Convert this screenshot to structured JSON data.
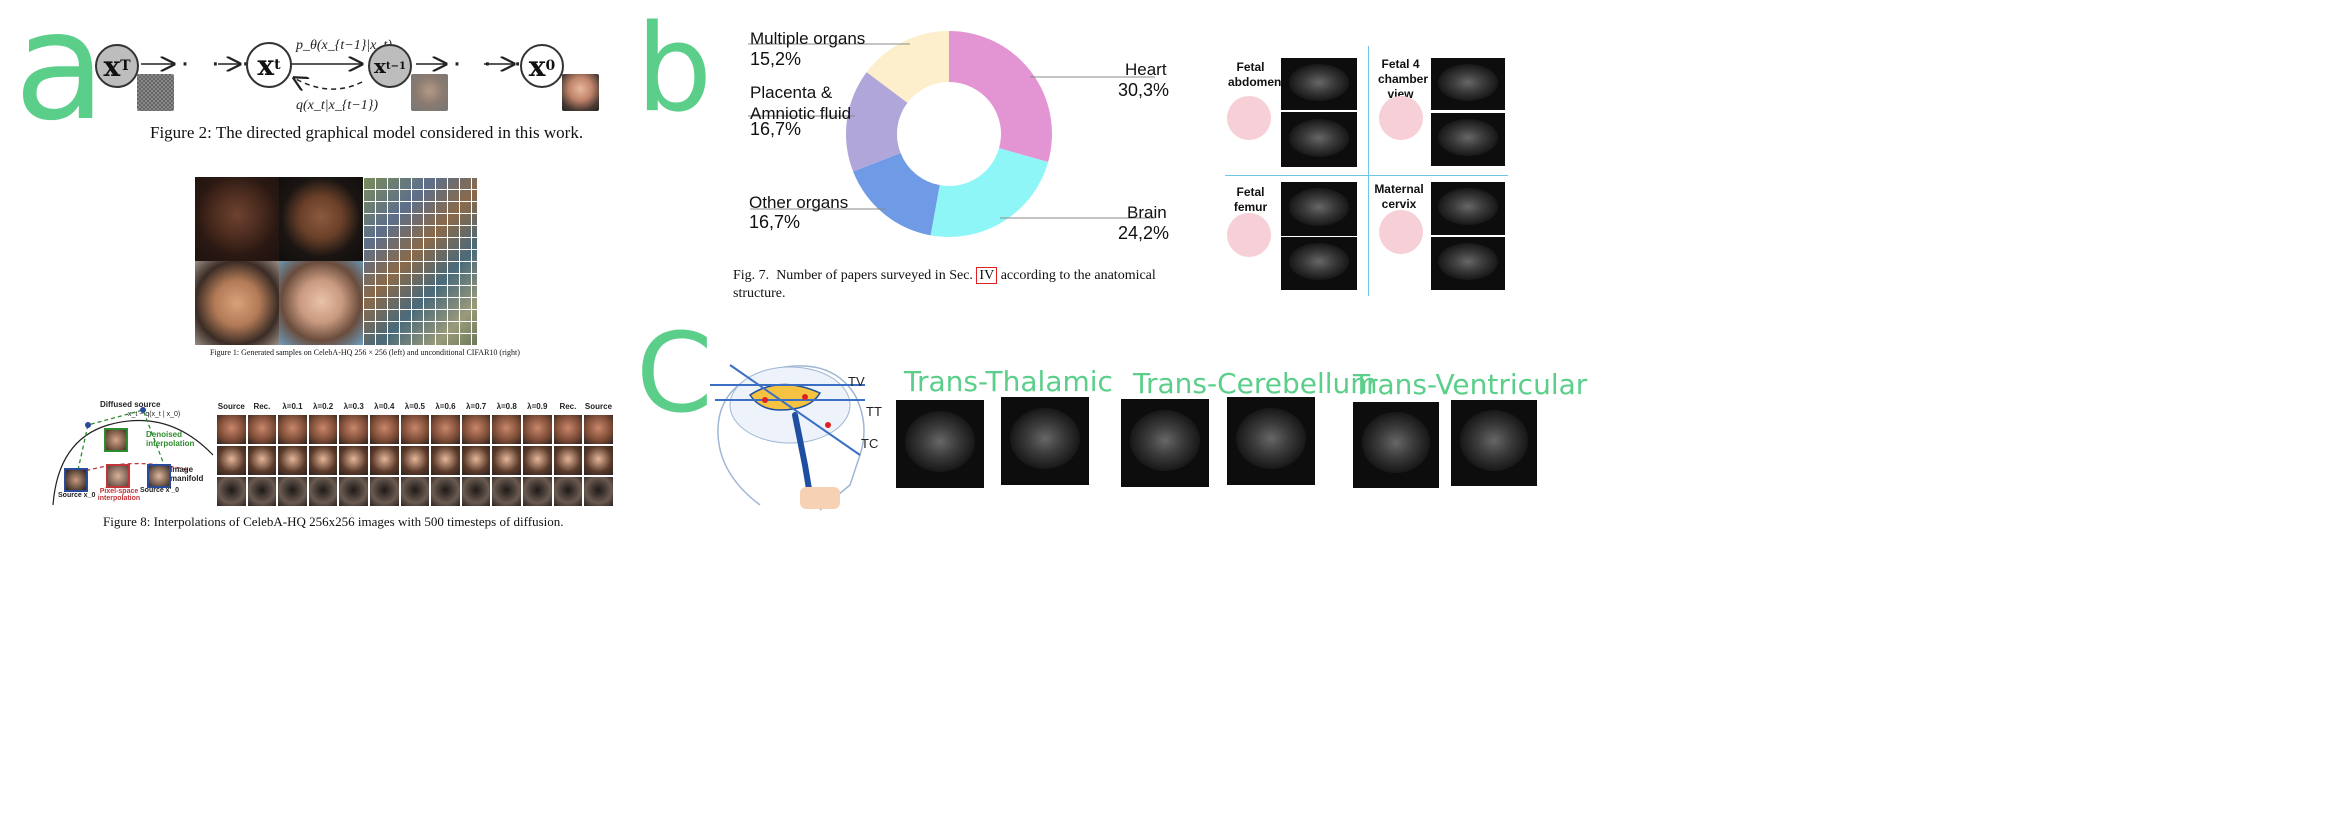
{
  "panel_a": {
    "letter": "a",
    "fig2": {
      "nodes": [
        "x_T",
        "x_t",
        "x_{t-1}",
        "x_0"
      ],
      "node_labels": {
        "xT": "x",
        "xT_sub": "T",
        "xt": "x",
        "xt_sub": "t",
        "xtm1": "x",
        "xtm1_sub": "t−1",
        "x0": "x",
        "x0_sub": "0"
      },
      "ellipsis": "· · ·",
      "forward_label": "p",
      "forward_label_full": "(x",
      "p_theta": "p_θ(x_{t−1}|x_t)",
      "q_label": "q(x_t|x_{t−1})",
      "caption_prefix": "Figure 2:",
      "caption_text": "The directed graphical model considered in this work."
    },
    "fig1": {
      "caption": "Figure 1: Generated samples on CelebA-HQ 256 × 256 (left) and unconditional CIFAR10 (right)"
    },
    "fig8": {
      "diffused_source": "Diffused source",
      "xt_label": "x_t ~ q(x_t | x_0)",
      "denoised_interp": "Denoised interpolation",
      "image_manifold": "Image manifold",
      "source_x0": "Source x_0",
      "pixel_space_interp": "Pixel-space interpolation",
      "source_x0_prime": "Source x'_0",
      "columns": [
        "Source",
        "Rec.",
        "λ=0.1",
        "λ=0.2",
        "λ=0.3",
        "λ=0.4",
        "λ=0.5",
        "λ=0.6",
        "λ=0.7",
        "λ=0.8",
        "λ=0.9",
        "Rec.",
        "Source"
      ],
      "caption_prefix": "Figure 8:",
      "caption_text": "Interpolations of CelebA-HQ 256x256 images with 500 timesteps of diffusion."
    }
  },
  "panel_b": {
    "letter": "b",
    "chart_data": {
      "type": "pie",
      "categories": [
        "Heart",
        "Brain",
        "Other organs",
        "Placenta & Amniotic fluid",
        "Multiple organs"
      ],
      "values": [
        30.3,
        24.2,
        16.7,
        16.7,
        15.2
      ],
      "value_labels": [
        "30,3%",
        "24,2%",
        "16,7%",
        "16,7%",
        "15,2%"
      ],
      "colors": [
        "#e394d3",
        "#8ff6f8",
        "#6f9be6",
        "#b1a6da",
        "#fdefcc"
      ],
      "donut": true,
      "title": ""
    },
    "caption_prefix": "Fig. 7.",
    "caption_text_before": "Number of papers surveyed in Sec.",
    "caption_ref": "IV",
    "caption_text_after": "according to the anatomical",
    "caption_line2": "structure.",
    "us_grid": [
      {
        "label": "Fetal abdomen"
      },
      {
        "label": "Fetal 4 chamber view"
      },
      {
        "label": "Fetal femur"
      },
      {
        "label": "Maternal cervix"
      }
    ]
  },
  "panel_c": {
    "letter": "C",
    "plane_labels": [
      "TV",
      "TT",
      "TC"
    ],
    "titles": [
      "Trans-Thalamic",
      "Trans-Cerebellum",
      "Trans-Ventricular"
    ]
  }
}
